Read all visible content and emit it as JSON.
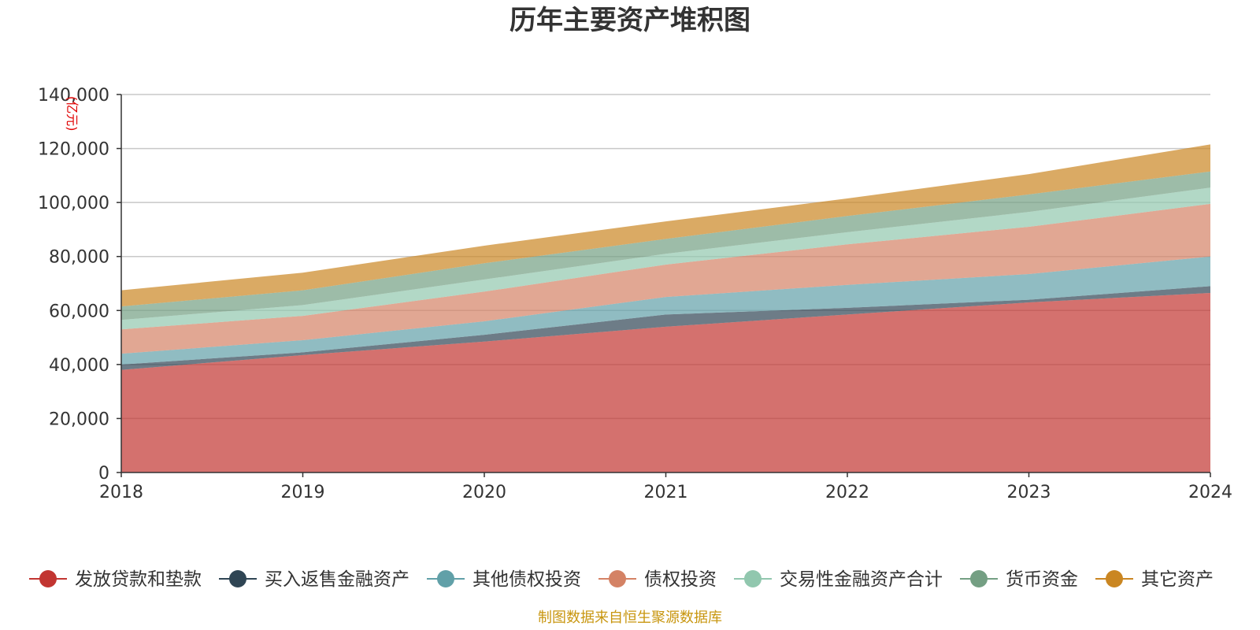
{
  "chart_data": {
    "type": "area",
    "stacked": true,
    "title": "历年主要资产堆积图",
    "ylabel": "(亿元)",
    "xlabel": "",
    "x": [
      "2018",
      "2019",
      "2020",
      "2021",
      "2022",
      "2023",
      "2024"
    ],
    "ylim": [
      0,
      140000
    ],
    "yticks": [
      0,
      20000,
      40000,
      60000,
      80000,
      100000,
      120000,
      140000
    ],
    "ytick_labels": [
      "0",
      "20,000",
      "40,000",
      "60,000",
      "80,000",
      "100,000",
      "120,000",
      "140,000"
    ],
    "grid": true,
    "legend_position": "bottom",
    "series": [
      {
        "name": "发放贷款和垫款",
        "color": "#c23531",
        "values": [
          38000,
          43500,
          48500,
          54000,
          58500,
          63000,
          66500
        ]
      },
      {
        "name": "买入返售金融资产",
        "color": "#2f4554",
        "values": [
          2000,
          1000,
          2500,
          4500,
          2500,
          1000,
          2500
        ]
      },
      {
        "name": "其他债权投资",
        "color": "#61a0a8",
        "values": [
          4000,
          4500,
          5000,
          6500,
          8500,
          9500,
          11000
        ]
      },
      {
        "name": "债权投资",
        "color": "#d48265",
        "values": [
          9000,
          9000,
          11000,
          12000,
          15000,
          17500,
          19500
        ]
      },
      {
        "name": "交易性金融资产合计",
        "color": "#91c7ae",
        "values": [
          3500,
          4000,
          4500,
          4000,
          4500,
          5500,
          6000
        ]
      },
      {
        "name": "货币资金",
        "color": "#749f83",
        "values": [
          5000,
          5500,
          6000,
          5500,
          6000,
          6500,
          6000
        ]
      },
      {
        "name": "其它资产",
        "color": "#ca8622",
        "values": [
          6000,
          6500,
          6500,
          6500,
          6500,
          7500,
          10000
        ]
      }
    ],
    "source_note": "制图数据来自恒生聚源数据库"
  }
}
